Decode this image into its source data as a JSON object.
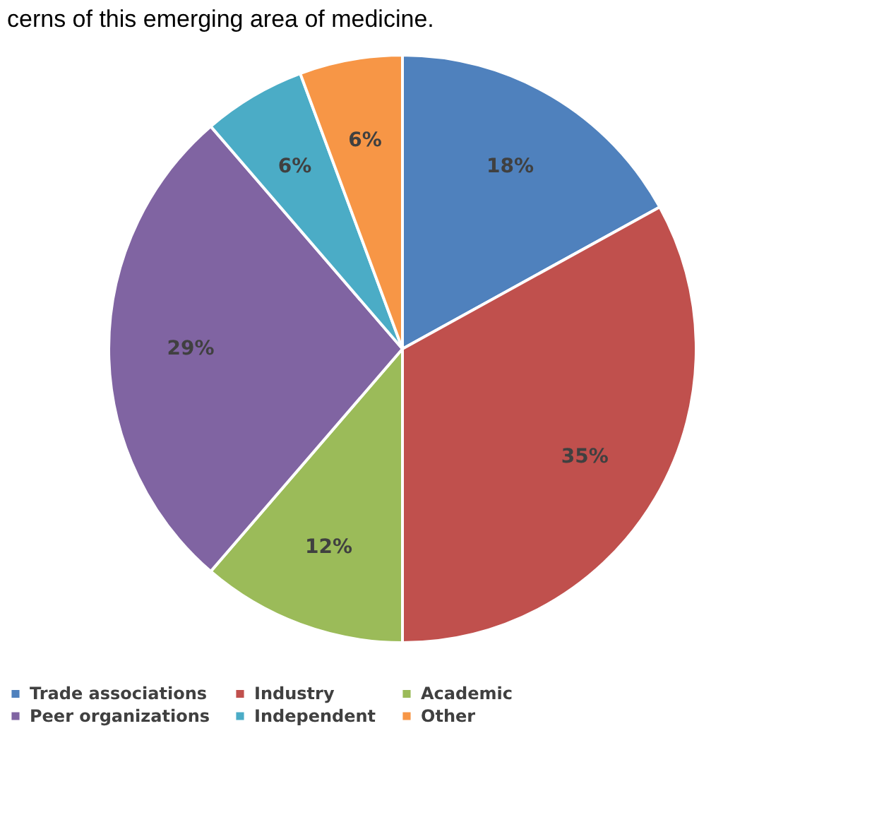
{
  "chart_data": {
    "type": "pie",
    "annotations": [
      "cerns of this emerging area of medicine."
    ],
    "categories": [
      "Trade associations",
      "Industry",
      "Academic",
      "Peer organizations",
      "Independent",
      "Other"
    ],
    "values": [
      18,
      35,
      12,
      29,
      6,
      6
    ],
    "colors": [
      "#4f81bd",
      "#c0504d",
      "#9bbb59",
      "#8064a2",
      "#4bacc6",
      "#f79646"
    ],
    "value_labels": [
      "18%",
      "35%",
      "12%",
      "29%",
      "6%",
      "6%"
    ],
    "legend": "bottom"
  }
}
